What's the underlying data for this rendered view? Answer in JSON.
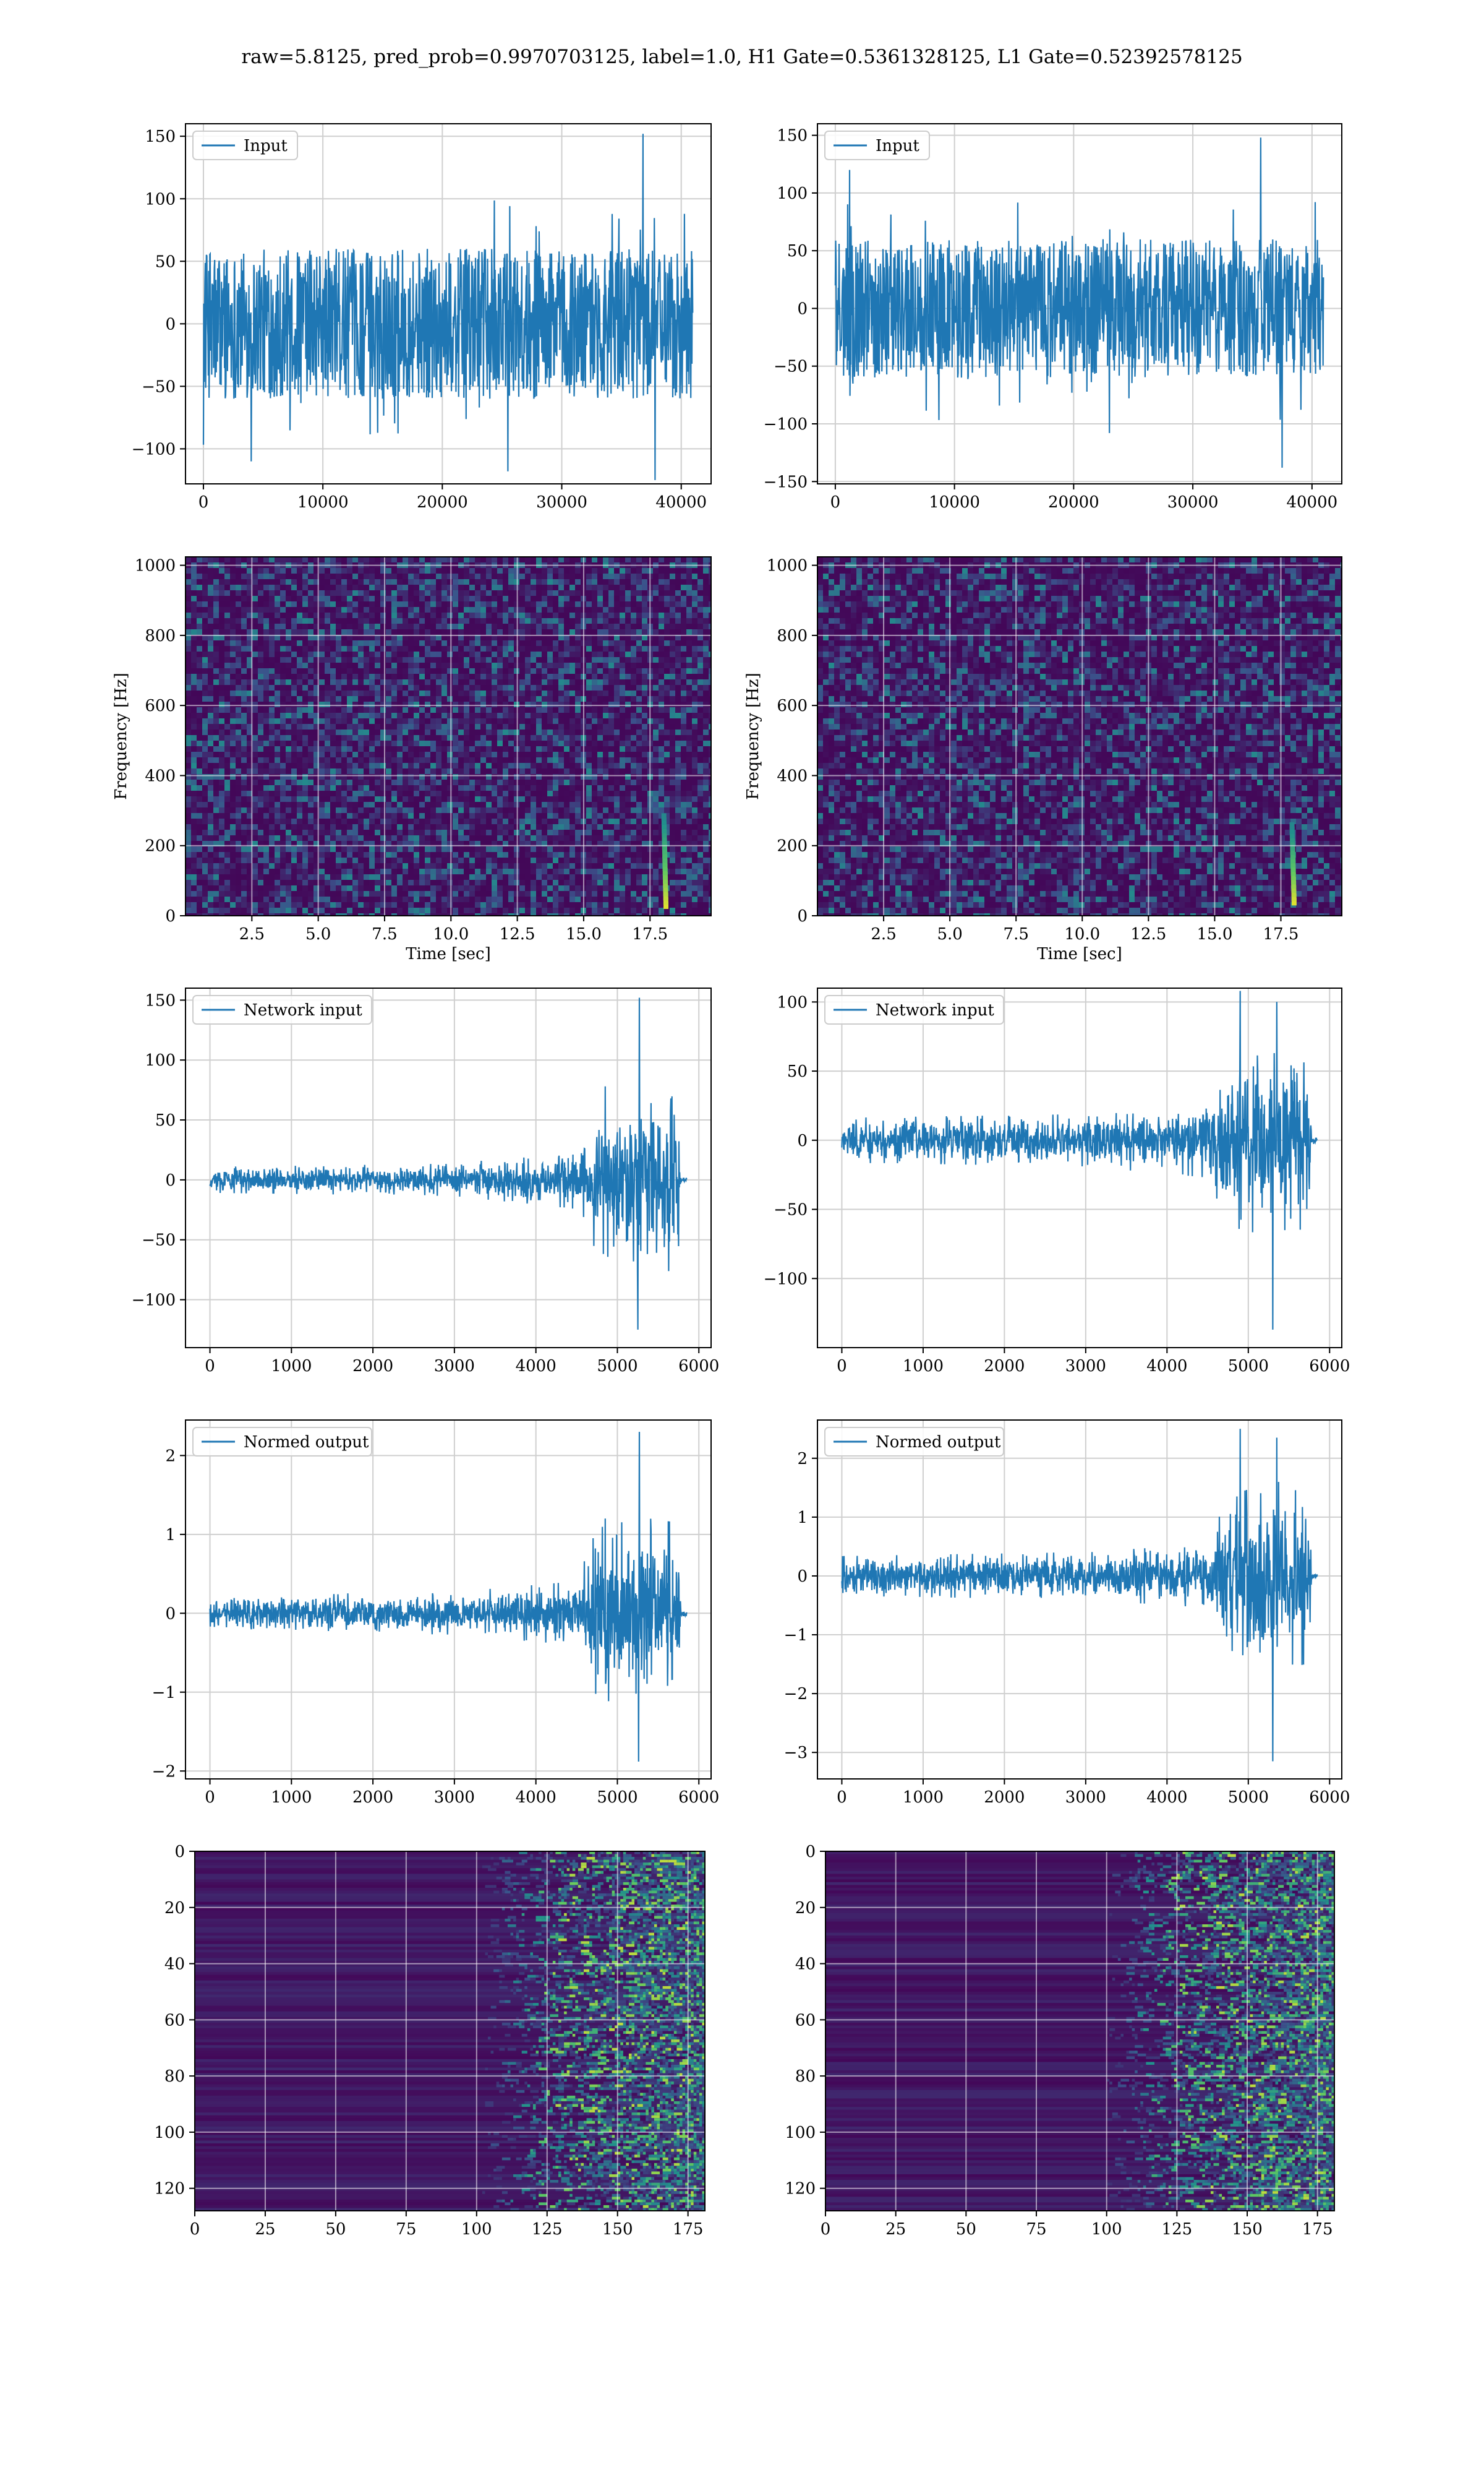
{
  "figure": {
    "suptitle": "raw=5.8125, pred_prob=0.9970703125, label=1.0, H1 Gate=0.5361328125, L1 Gate=0.52392578125"
  },
  "chart_data": [
    {
      "type": "line",
      "legend": [
        "Input"
      ],
      "legend_loc": "upper-left",
      "grid": true,
      "xlim": [
        -1500,
        42500
      ],
      "ylim": [
        -128,
        160
      ],
      "xticks": [
        0,
        10000,
        20000,
        30000,
        40000
      ],
      "yticks": [
        -100,
        -50,
        0,
        50,
        100,
        150
      ],
      "series": [
        {
          "name": "Input",
          "x_range": [
            0,
            40960
          ],
          "amp": 60,
          "spike": 100,
          "extremes": [
            [
              36800,
              152
            ],
            [
              37800,
              -125
            ],
            [
              25500,
              -118
            ],
            [
              4000,
              -110
            ]
          ]
        }
      ]
    },
    {
      "type": "line",
      "legend": [
        "Input"
      ],
      "legend_loc": "upper-left",
      "grid": true,
      "xlim": [
        -1500,
        42500
      ],
      "ylim": [
        -152,
        160
      ],
      "xticks": [
        0,
        10000,
        20000,
        30000,
        40000
      ],
      "yticks": [
        -150,
        -100,
        -50,
        0,
        50,
        100,
        150
      ],
      "series": [
        {
          "name": "Input",
          "x_range": [
            0,
            40960
          ],
          "amp": 60,
          "spike": 100,
          "extremes": [
            [
              35700,
              148
            ],
            [
              37500,
              -138
            ],
            [
              1200,
              120
            ],
            [
              23000,
              -108
            ]
          ]
        }
      ]
    },
    {
      "type": "heatmap",
      "xlabel": "Time [sec]",
      "ylabel": "Frequency [Hz]",
      "grid": true,
      "xlim": [
        0,
        19.8
      ],
      "ylim": [
        0,
        1024
      ],
      "xticks": [
        2.5,
        5.0,
        7.5,
        10.0,
        12.5,
        15.0,
        17.5
      ],
      "xtick_labels": [
        "2.5",
        "5.0",
        "7.5",
        "10.0",
        "12.5",
        "15.0",
        "17.5"
      ],
      "yticks": [
        0,
        200,
        400,
        600,
        800,
        1000
      ],
      "chirp": {
        "t": 18.1,
        "f_low": 30,
        "f_high": 290
      },
      "colormap": "viridis"
    },
    {
      "type": "heatmap",
      "xlabel": "Time [sec]",
      "ylabel": "Frequency [Hz]",
      "grid": true,
      "xlim": [
        0,
        19.8
      ],
      "ylim": [
        0,
        1024
      ],
      "xticks": [
        2.5,
        5.0,
        7.5,
        10.0,
        12.5,
        15.0,
        17.5
      ],
      "xtick_labels": [
        "2.5",
        "5.0",
        "7.5",
        "10.0",
        "12.5",
        "15.0",
        "17.5"
      ],
      "yticks": [
        0,
        200,
        400,
        600,
        800,
        1000
      ],
      "chirp": {
        "t": 18.0,
        "f_low": 40,
        "f_high": 260
      },
      "colormap": "viridis"
    },
    {
      "type": "line",
      "legend": [
        "Network input"
      ],
      "legend_loc": "upper-left",
      "grid": true,
      "xlim": [
        -300,
        6150
      ],
      "ylim": [
        -140,
        160
      ],
      "xticks": [
        0,
        1000,
        2000,
        3000,
        4000,
        5000,
        6000
      ],
      "yticks": [
        -100,
        -50,
        0,
        50,
        100,
        150
      ],
      "series": [
        {
          "name": "Network input",
          "x_range": [
            0,
            5850
          ],
          "envelope": [
            [
              0,
              8
            ],
            [
              3000,
              10
            ],
            [
              4500,
              18
            ],
            [
              4750,
              45
            ],
            [
              5300,
              60
            ],
            [
              5750,
              55
            ],
            [
              5780,
              2
            ],
            [
              5850,
              2
            ]
          ],
          "extremes": [
            [
              5270,
              152
            ],
            [
              5250,
              -125
            ],
            [
              4850,
              78
            ]
          ]
        }
      ]
    },
    {
      "type": "line",
      "legend": [
        "Network input"
      ],
      "legend_loc": "upper-left",
      "grid": true,
      "xlim": [
        -300,
        6150
      ],
      "ylim": [
        -150,
        110
      ],
      "xticks": [
        0,
        1000,
        2000,
        3000,
        4000,
        5000,
        6000
      ],
      "yticks": [
        -100,
        -50,
        0,
        50,
        100
      ],
      "series": [
        {
          "name": "Network input",
          "x_range": [
            0,
            5850
          ],
          "envelope": [
            [
              0,
              12
            ],
            [
              3000,
              14
            ],
            [
              4500,
              20
            ],
            [
              4750,
              45
            ],
            [
              5300,
              55
            ],
            [
              5750,
              50
            ],
            [
              5780,
              2
            ],
            [
              5850,
              2
            ]
          ],
          "extremes": [
            [
              4900,
              108
            ],
            [
              5300,
              -137
            ],
            [
              5350,
              100
            ]
          ]
        }
      ]
    },
    {
      "type": "line",
      "legend": [
        "Normed output"
      ],
      "legend_loc": "upper-left",
      "grid": true,
      "xlim": [
        -300,
        6150
      ],
      "ylim": [
        -2.1,
        2.45
      ],
      "xticks": [
        0,
        1000,
        2000,
        3000,
        4000,
        5000,
        6000
      ],
      "yticks": [
        -2,
        -1,
        0,
        1,
        2
      ],
      "series": [
        {
          "name": "Normed output",
          "x_range": [
            0,
            5850
          ],
          "envelope": [
            [
              0,
              0.17
            ],
            [
              3000,
              0.2
            ],
            [
              4500,
              0.3
            ],
            [
              4750,
              0.8
            ],
            [
              5300,
              0.9
            ],
            [
              5750,
              0.85
            ],
            [
              5780,
              0.03
            ],
            [
              5850,
              0.03
            ]
          ],
          "extremes": [
            [
              5270,
              2.3
            ],
            [
              5260,
              -1.88
            ],
            [
              4850,
              1.2
            ]
          ]
        }
      ]
    },
    {
      "type": "line",
      "legend": [
        "Normed output"
      ],
      "legend_loc": "upper-left",
      "grid": true,
      "xlim": [
        -300,
        6150
      ],
      "ylim": [
        -3.45,
        2.65
      ],
      "xticks": [
        0,
        1000,
        2000,
        3000,
        4000,
        5000,
        6000
      ],
      "yticks": [
        -3,
        -2,
        -1,
        0,
        1,
        2
      ],
      "series": [
        {
          "name": "Normed output",
          "x_range": [
            0,
            5850
          ],
          "envelope": [
            [
              0,
              0.25
            ],
            [
              3000,
              0.3
            ],
            [
              4500,
              0.4
            ],
            [
              4750,
              1.0
            ],
            [
              5300,
              1.2
            ],
            [
              5750,
              1.1
            ],
            [
              5780,
              0.04
            ],
            [
              5850,
              0.04
            ]
          ],
          "extremes": [
            [
              4900,
              2.5
            ],
            [
              5300,
              -3.15
            ],
            [
              5350,
              2.35
            ]
          ]
        }
      ]
    },
    {
      "type": "heatmap",
      "grid": true,
      "xlim": [
        0,
        181
      ],
      "ylim": [
        128,
        0
      ],
      "xticks": [
        0,
        25,
        50,
        75,
        100,
        125,
        150,
        175
      ],
      "yticks": [
        0,
        20,
        40,
        60,
        80,
        100,
        120
      ],
      "active_from": 127,
      "colormap": "viridis"
    },
    {
      "type": "heatmap",
      "grid": true,
      "xlim": [
        0,
        181
      ],
      "ylim": [
        128,
        0
      ],
      "xticks": [
        0,
        25,
        50,
        75,
        100,
        125,
        150,
        175
      ],
      "yticks": [
        0,
        20,
        40,
        60,
        80,
        100,
        120
      ],
      "active_from": 125,
      "colormap": "viridis"
    }
  ]
}
